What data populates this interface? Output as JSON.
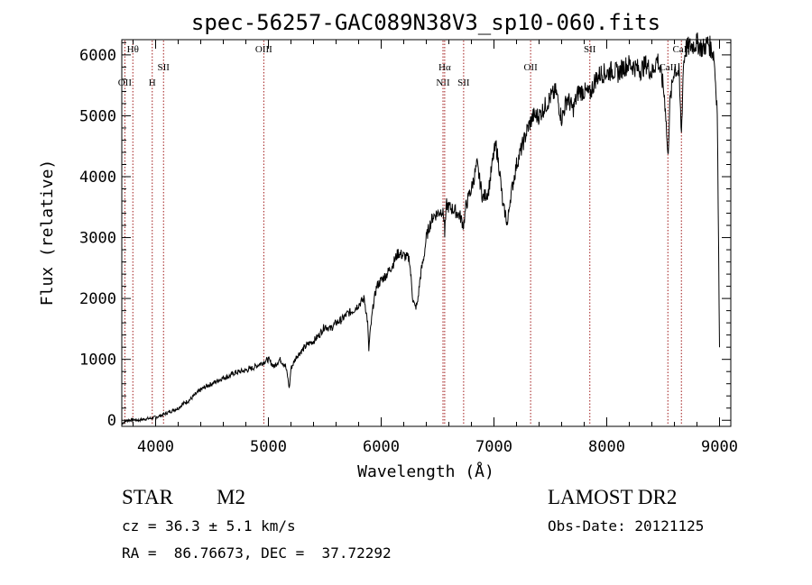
{
  "chart_data": {
    "type": "line",
    "title": "spec-56257-GAC089N38V3_sp10-060.fits",
    "xlabel": "Wavelength (Å)",
    "ylabel": "Flux (relative)",
    "xlim": [
      3700,
      9100
    ],
    "ylim": [
      -100,
      6250
    ],
    "x_ticks": [
      4000,
      5000,
      6000,
      7000,
      8000,
      9000
    ],
    "y_ticks": [
      0,
      1000,
      2000,
      3000,
      4000,
      5000,
      6000
    ],
    "series": [
      {
        "name": "flux",
        "x": [
          3700,
          3750,
          3800,
          3850,
          3900,
          3950,
          4000,
          4050,
          4100,
          4150,
          4200,
          4250,
          4300,
          4350,
          4400,
          4450,
          4500,
          4550,
          4600,
          4650,
          4700,
          4750,
          4800,
          4850,
          4900,
          4950,
          5000,
          5050,
          5100,
          5150,
          5170,
          5185,
          5200,
          5250,
          5300,
          5350,
          5400,
          5450,
          5500,
          5550,
          5600,
          5650,
          5700,
          5750,
          5800,
          5850,
          5880,
          5890,
          5900,
          5930,
          5960,
          6000,
          6050,
          6100,
          6150,
          6200,
          6250,
          6280,
          6300,
          6320,
          6350,
          6380,
          6400,
          6430,
          6460,
          6500,
          6540,
          6560,
          6563,
          6580,
          6600,
          6650,
          6700,
          6730,
          6750,
          6780,
          6800,
          6850,
          6900,
          6950,
          7000,
          7020,
          7050,
          7080,
          7100,
          7120,
          7140,
          7160,
          7200,
          7250,
          7300,
          7350,
          7400,
          7450,
          7500,
          7550,
          7600,
          7650,
          7700,
          7750,
          7800,
          7850,
          7900,
          7950,
          8000,
          8050,
          8100,
          8150,
          8200,
          8250,
          8300,
          8350,
          8400,
          8450,
          8500,
          8520,
          8542,
          8560,
          8600,
          8640,
          8662,
          8680,
          8700,
          8750,
          8800,
          8850,
          8900,
          8950,
          8980,
          9000
        ],
        "y": [
          -50,
          0,
          10,
          0,
          20,
          30,
          50,
          80,
          120,
          160,
          200,
          280,
          330,
          420,
          500,
          560,
          600,
          650,
          700,
          720,
          780,
          800,
          820,
          850,
          900,
          950,
          1000,
          880,
          1000,
          900,
          720,
          520,
          850,
          1050,
          1150,
          1250,
          1300,
          1400,
          1550,
          1500,
          1600,
          1650,
          1750,
          1800,
          1900,
          2000,
          1600,
          1150,
          1400,
          1900,
          2200,
          2300,
          2400,
          2550,
          2750,
          2700,
          2650,
          2000,
          1850,
          1900,
          2400,
          2700,
          3000,
          3200,
          3350,
          3400,
          3450,
          3300,
          3050,
          3550,
          3500,
          3450,
          3350,
          3200,
          3500,
          3700,
          3800,
          4200,
          3650,
          3750,
          4400,
          4500,
          4100,
          3500,
          3400,
          3200,
          3600,
          3800,
          4200,
          4500,
          4800,
          5000,
          5000,
          5150,
          5300,
          5400,
          4950,
          5300,
          5100,
          5400,
          5400,
          5350,
          5600,
          5700,
          5700,
          5750,
          5700,
          5800,
          5850,
          5800,
          5750,
          5850,
          5700,
          5950,
          5500,
          5150,
          4300,
          5200,
          5800,
          5700,
          4700,
          5850,
          6100,
          6150,
          6200,
          6100,
          6200,
          6000,
          5100,
          1200
        ]
      }
    ],
    "lines": [
      {
        "x": 3727,
        "label": "OII",
        "row": 2
      },
      {
        "x": 3798,
        "label": "Hθ",
        "row": 0
      },
      {
        "x": 3970,
        "label": "H",
        "row": 2
      },
      {
        "x": 4070,
        "label": "SII",
        "row": 1
      },
      {
        "x": 4959,
        "label": "OIII",
        "row": 0
      },
      {
        "x": 6548,
        "label": "NII",
        "row": 2
      },
      {
        "x": 6563,
        "label": "Hα",
        "row": 1
      },
      {
        "x": 6731,
        "label": "SII",
        "row": 2
      },
      {
        "x": 7325,
        "label": "OII",
        "row": 1
      },
      {
        "x": 7850,
        "label": "SII",
        "row": 0
      },
      {
        "x": 8542,
        "label": "CaII",
        "row": 1
      },
      {
        "x": 8662,
        "label": "CaII",
        "row": 0
      }
    ]
  },
  "info": {
    "object_class": "STAR",
    "subclass": "M2",
    "survey": "LAMOST DR2",
    "redshift": "cz = 36.3 ± 5.1 km/s",
    "obs_date": "Obs-Date: 20121125",
    "coords": "RA =  86.76673, DEC =  37.72292"
  }
}
